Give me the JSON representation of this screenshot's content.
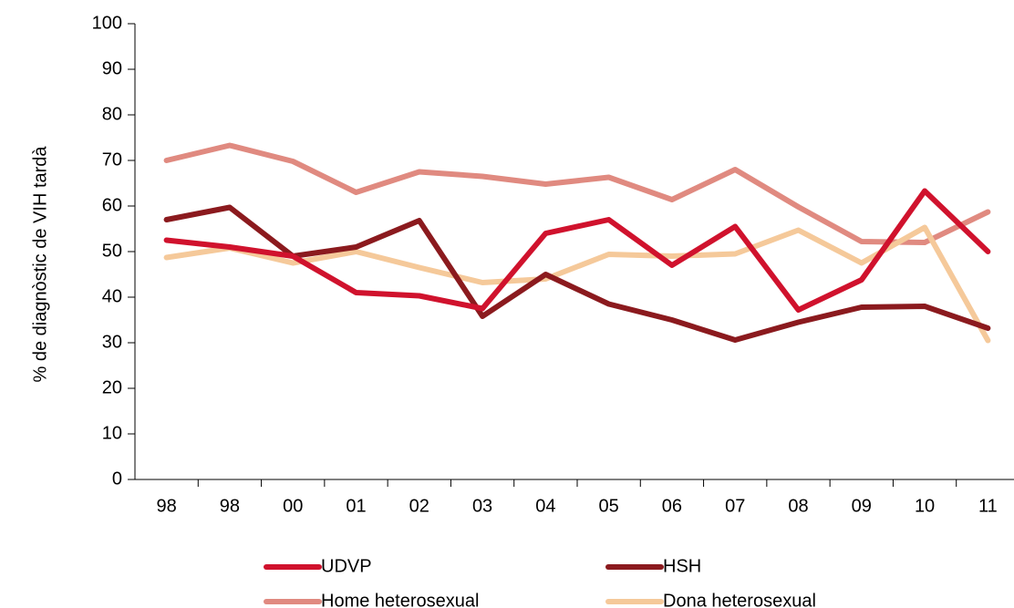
{
  "chart_data": {
    "type": "line",
    "y_label": "% de diagnòstic de VIH tardà",
    "categories": [
      "98",
      "98",
      "00",
      "01",
      "02",
      "03",
      "04",
      "05",
      "06",
      "07",
      "08",
      "09",
      "10",
      "11"
    ],
    "series": [
      {
        "name": "UDVP",
        "color": "#d0122d",
        "values": [
          52.5,
          51,
          49,
          41,
          40.3,
          37.5,
          54,
          57,
          47,
          55.5,
          37.2,
          43.8,
          63.3,
          50
        ]
      },
      {
        "name": "HSH",
        "color": "#8b1a1e",
        "values": [
          57,
          59.7,
          49,
          51,
          56.8,
          35.8,
          45,
          38.5,
          35,
          30.6,
          34.5,
          37.8,
          38,
          33.2
        ]
      },
      {
        "name": "Home heterosexual",
        "color": "#e08a80",
        "values": [
          70,
          73.3,
          69.8,
          63,
          67.5,
          66.5,
          64.8,
          66.3,
          61.4,
          68,
          59.8,
          52.2,
          52,
          58.7
        ]
      },
      {
        "name": "Dona heterosexual",
        "color": "#f5c99a",
        "values": [
          48.7,
          50.8,
          47.5,
          50,
          46.5,
          43.2,
          44,
          49.4,
          49,
          49.5,
          54.7,
          47.5,
          55.3,
          30.5
        ]
      }
    ],
    "ylim": [
      0,
      100
    ],
    "yticks": [
      0,
      10,
      20,
      30,
      40,
      50,
      60,
      70,
      80,
      90,
      100
    ]
  }
}
